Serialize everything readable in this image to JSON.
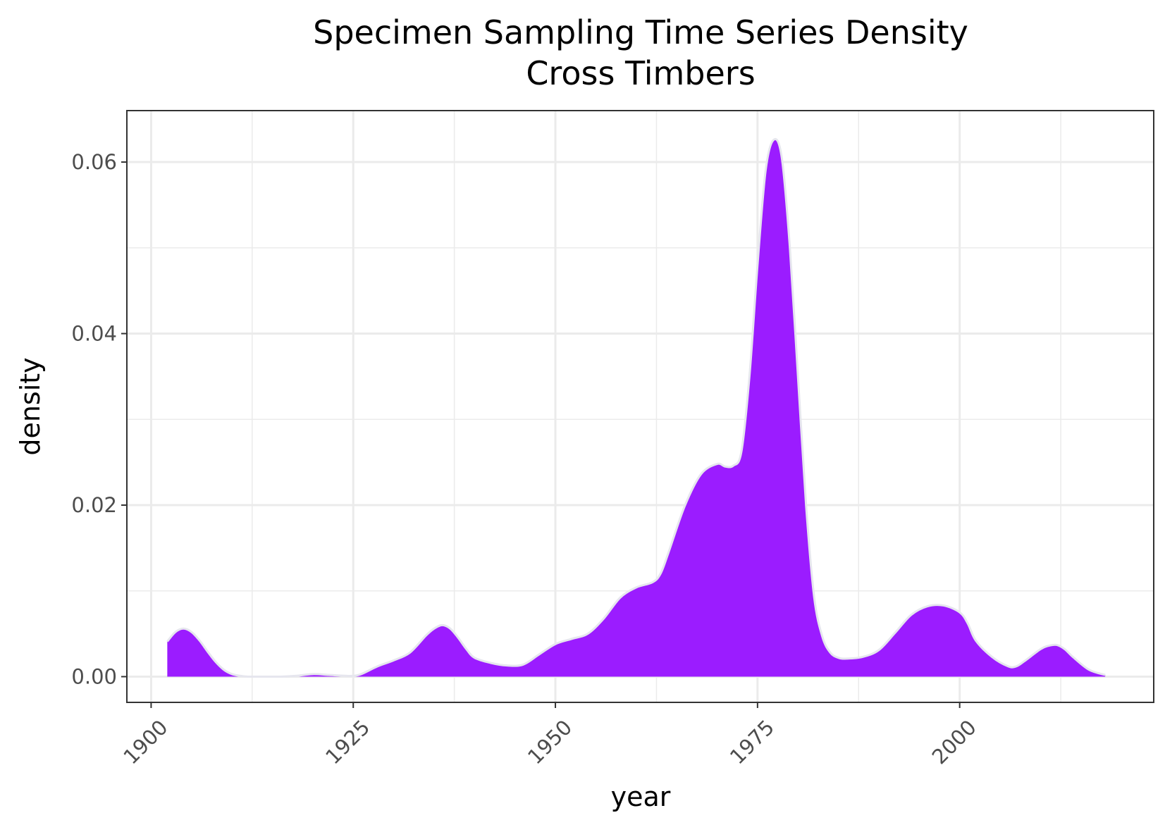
{
  "chart_data": {
    "type": "area",
    "title": "Specimen Sampling Time Series Density",
    "subtitle": "Cross Timbers",
    "xlabel": "year",
    "ylabel": "density",
    "xlim": [
      1897,
      2024
    ],
    "ylim": [
      -0.003,
      0.066
    ],
    "x_ticks": [
      1900,
      1925,
      1950,
      1975,
      2000
    ],
    "x_tick_labels": [
      "1900",
      "1925",
      "1950",
      "1975",
      "2000"
    ],
    "x_minor_ticks": [
      1912.5,
      1937.5,
      1962.5,
      1987.5,
      2012.5
    ],
    "y_ticks": [
      0.0,
      0.02,
      0.04,
      0.06
    ],
    "y_tick_labels": [
      "0.00",
      "0.02",
      "0.04",
      "0.06"
    ],
    "y_minor_ticks": [
      0.01,
      0.03,
      0.05
    ],
    "grid": true,
    "fill_color": "#9b1cff",
    "line_color": "#e6e6ee",
    "series": [
      {
        "x": [
          1902,
          1903,
          1904,
          1905,
          1906,
          1907,
          1908,
          1909,
          1910,
          1911,
          1912,
          1914,
          1916,
          1918,
          1920,
          1922,
          1924,
          1925,
          1926,
          1928,
          1930,
          1932,
          1934,
          1935,
          1936,
          1937,
          1938,
          1939,
          1940,
          1942,
          1944,
          1946,
          1948,
          1950,
          1952,
          1954,
          1956,
          1958,
          1960,
          1962,
          1963,
          1964,
          1966,
          1968,
          1970,
          1971,
          1972,
          1973,
          1974,
          1975,
          1976,
          1977,
          1978,
          1979,
          1980,
          1981,
          1982,
          1983,
          1984,
          1985,
          1986,
          1988,
          1990,
          1992,
          1994,
          1996,
          1998,
          2000,
          2001,
          2002,
          2004,
          2006,
          2007,
          2008,
          2010,
          2011,
          2012,
          2013,
          2014,
          2016,
          2018
        ],
        "y": [
          0.0041,
          0.0052,
          0.0056,
          0.0052,
          0.0042,
          0.0029,
          0.0017,
          0.0008,
          0.0003,
          0.0001,
          0.0,
          0.0,
          0.0,
          0.0001,
          0.0003,
          0.0002,
          0.0001,
          0.0001,
          0.0003,
          0.0012,
          0.0019,
          0.0028,
          0.0048,
          0.0056,
          0.006,
          0.0056,
          0.0045,
          0.0032,
          0.0022,
          0.0016,
          0.0013,
          0.0014,
          0.0026,
          0.0038,
          0.0044,
          0.005,
          0.0068,
          0.0092,
          0.0104,
          0.011,
          0.012,
          0.0145,
          0.0199,
          0.0236,
          0.0248,
          0.0245,
          0.0246,
          0.0262,
          0.035,
          0.048,
          0.059,
          0.0626,
          0.0605,
          0.05,
          0.035,
          0.02,
          0.0093,
          0.0047,
          0.0028,
          0.0022,
          0.0021,
          0.0023,
          0.0031,
          0.0051,
          0.0072,
          0.0082,
          0.0083,
          0.0075,
          0.0062,
          0.0042,
          0.0023,
          0.0012,
          0.0012,
          0.0018,
          0.0032,
          0.0036,
          0.0037,
          0.0032,
          0.0023,
          0.0008,
          0.0002
        ]
      }
    ]
  }
}
